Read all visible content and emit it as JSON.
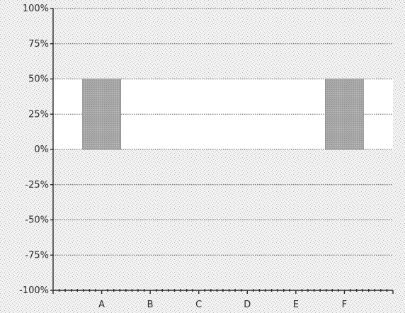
{
  "chart_data": {
    "type": "bar",
    "title": "",
    "xlabel": "",
    "ylabel": "",
    "categories": [
      "A",
      "B",
      "C",
      "D",
      "E",
      "F"
    ],
    "values": [
      50,
      0,
      0,
      0,
      0,
      50
    ],
    "ylim": [
      -100,
      100
    ],
    "yticks": [
      100,
      75,
      50,
      25,
      0,
      -25,
      -50,
      -75,
      -100
    ],
    "ytick_labels": [
      "100%",
      "75%",
      "50%",
      "25%",
      "0%",
      "-25%",
      "-50%",
      "-75%",
      "-100%"
    ],
    "grid": true,
    "legend": "none",
    "colors": {
      "bar": "#a9a9a9",
      "plot_texture": "#9a9a9a",
      "gridline": "#5a5a5a"
    }
  }
}
